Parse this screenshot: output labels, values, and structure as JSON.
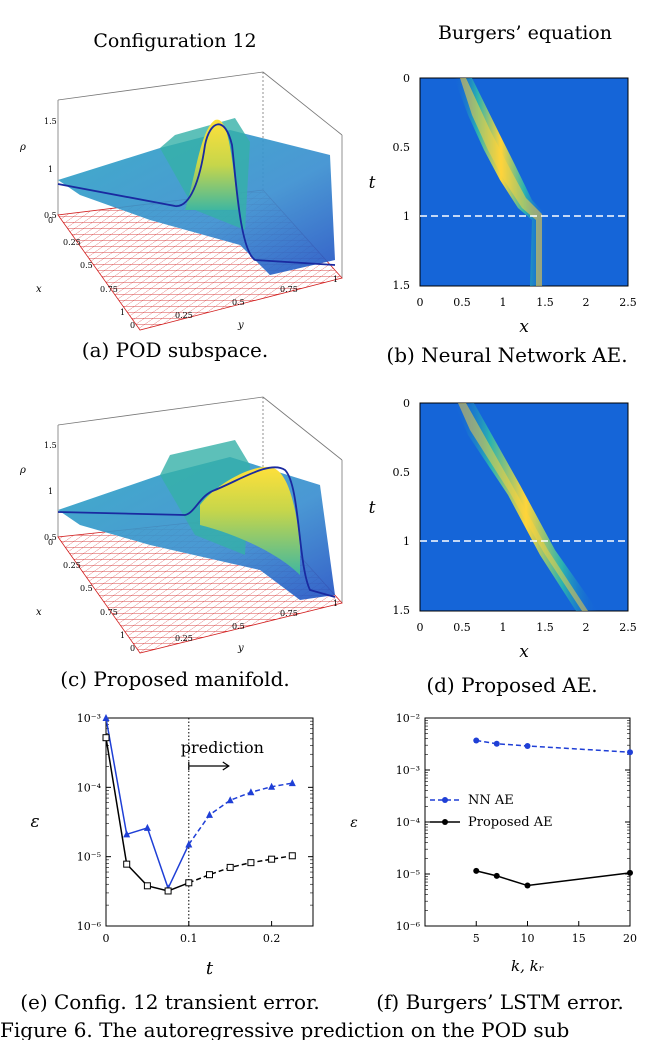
{
  "figure": {
    "left_title": "Configuration 12",
    "right_title": "Burgers’ equation",
    "figure_caption": "Figure 6. The autoregressive prediction on the POD sub"
  },
  "panels": {
    "a": {
      "caption": "(a) POD subspace.",
      "xlabel": "x",
      "ylabel": "y",
      "zlabel": "ρ",
      "x_ticks": [
        "0",
        "0.25",
        "0.5",
        "0.75",
        "1"
      ],
      "y_ticks": [
        "0",
        "0.25",
        "0.5",
        "0.75",
        "1"
      ],
      "z_ticks": [
        "0.5",
        "1",
        "1.5"
      ]
    },
    "b": {
      "caption": "(b) Neural Network AE.",
      "xlabel": "x",
      "ylabel": "t",
      "x_ticks": [
        "0",
        "0.5",
        "1",
        "1.5",
        "2",
        "2.5"
      ],
      "y_ticks": [
        "0",
        "0.5",
        "1",
        "1.5"
      ]
    },
    "c": {
      "caption": "(c) Proposed manifold.",
      "xlabel": "x",
      "ylabel": "y",
      "zlabel": "ρ",
      "x_ticks": [
        "0",
        "0.25",
        "0.5",
        "0.75",
        "1"
      ],
      "y_ticks": [
        "0",
        "0.25",
        "0.5",
        "0.75",
        "1"
      ],
      "z_ticks": [
        "0.5",
        "1",
        "1.5"
      ]
    },
    "d": {
      "caption": "(d) Proposed AE.",
      "xlabel": "x",
      "ylabel": "t",
      "x_ticks": [
        "0",
        "0.5",
        "1",
        "1.5",
        "2",
        "2.5"
      ],
      "y_ticks": [
        "0",
        "0.5",
        "1",
        "1.5"
      ]
    },
    "e": {
      "caption": "(e) Config. 12 transient error.",
      "annotation": "prediction"
    },
    "f": {
      "caption": "(f) Burgers’ LSTM error."
    }
  },
  "colors": {
    "blue": "#1f3fd6",
    "black": "#000000",
    "heat_bg": "#1565d8",
    "grid_red": "#d22020"
  },
  "chart_data": [
    {
      "type": "line",
      "panel": "e",
      "xlabel": "t",
      "ylabel": "ε",
      "yscale": "log",
      "xlim": [
        0,
        0.25
      ],
      "ylim": [
        1e-06,
        0.001
      ],
      "x_ticks": [
        "0",
        "0.1",
        "0.2"
      ],
      "y_ticks": [
        "10⁻⁶",
        "10⁻⁵",
        "10⁻⁴",
        "10⁻³"
      ],
      "series": [
        {
          "color": "#1f3fd6",
          "marker": "triangle",
          "x": [
            0,
            0.025,
            0.05,
            0.075,
            0.1,
            0.125,
            0.15,
            0.175,
            0.2,
            0.225
          ],
          "y": [
            0.001,
            2.1e-05,
            2.6e-05,
            3.5e-06,
            1.5e-05,
            4e-05,
            6.5e-05,
            8.5e-05,
            0.000102,
            0.000115
          ]
        },
        {
          "color": "#000000",
          "marker": "square",
          "x": [
            0,
            0.025,
            0.05,
            0.075,
            0.1,
            0.125,
            0.15,
            0.175,
            0.2,
            0.225
          ],
          "y": [
            0.00052,
            7.8e-06,
            3.8e-06,
            3.2e-06,
            4.2e-06,
            5.5e-06,
            7e-06,
            8.2e-06,
            9.2e-06,
            1.03e-05
          ]
        }
      ]
    },
    {
      "type": "line",
      "panel": "f",
      "xlabel": "k, kᵣ",
      "ylabel": "ε",
      "yscale": "log",
      "xlim": [
        0,
        20
      ],
      "ylim": [
        1e-06,
        0.01
      ],
      "x_ticks": [
        "5",
        "10",
        "15",
        "20"
      ],
      "y_ticks": [
        "10⁻⁶",
        "10⁻⁵",
        "10⁻⁴",
        "10⁻³",
        "10⁻²"
      ],
      "series": [
        {
          "name": "NN AE",
          "color": "#1f3fd6",
          "dashed": true,
          "x": [
            5,
            7,
            10,
            20
          ],
          "y": [
            0.0037,
            0.0032,
            0.0029,
            0.0022
          ]
        },
        {
          "name": "Proposed AE",
          "color": "#000000",
          "dashed": false,
          "x": [
            5,
            7,
            10,
            20
          ],
          "y": [
            1.15e-05,
            9.2e-06,
            6e-06,
            1.05e-05
          ]
        }
      ]
    }
  ]
}
